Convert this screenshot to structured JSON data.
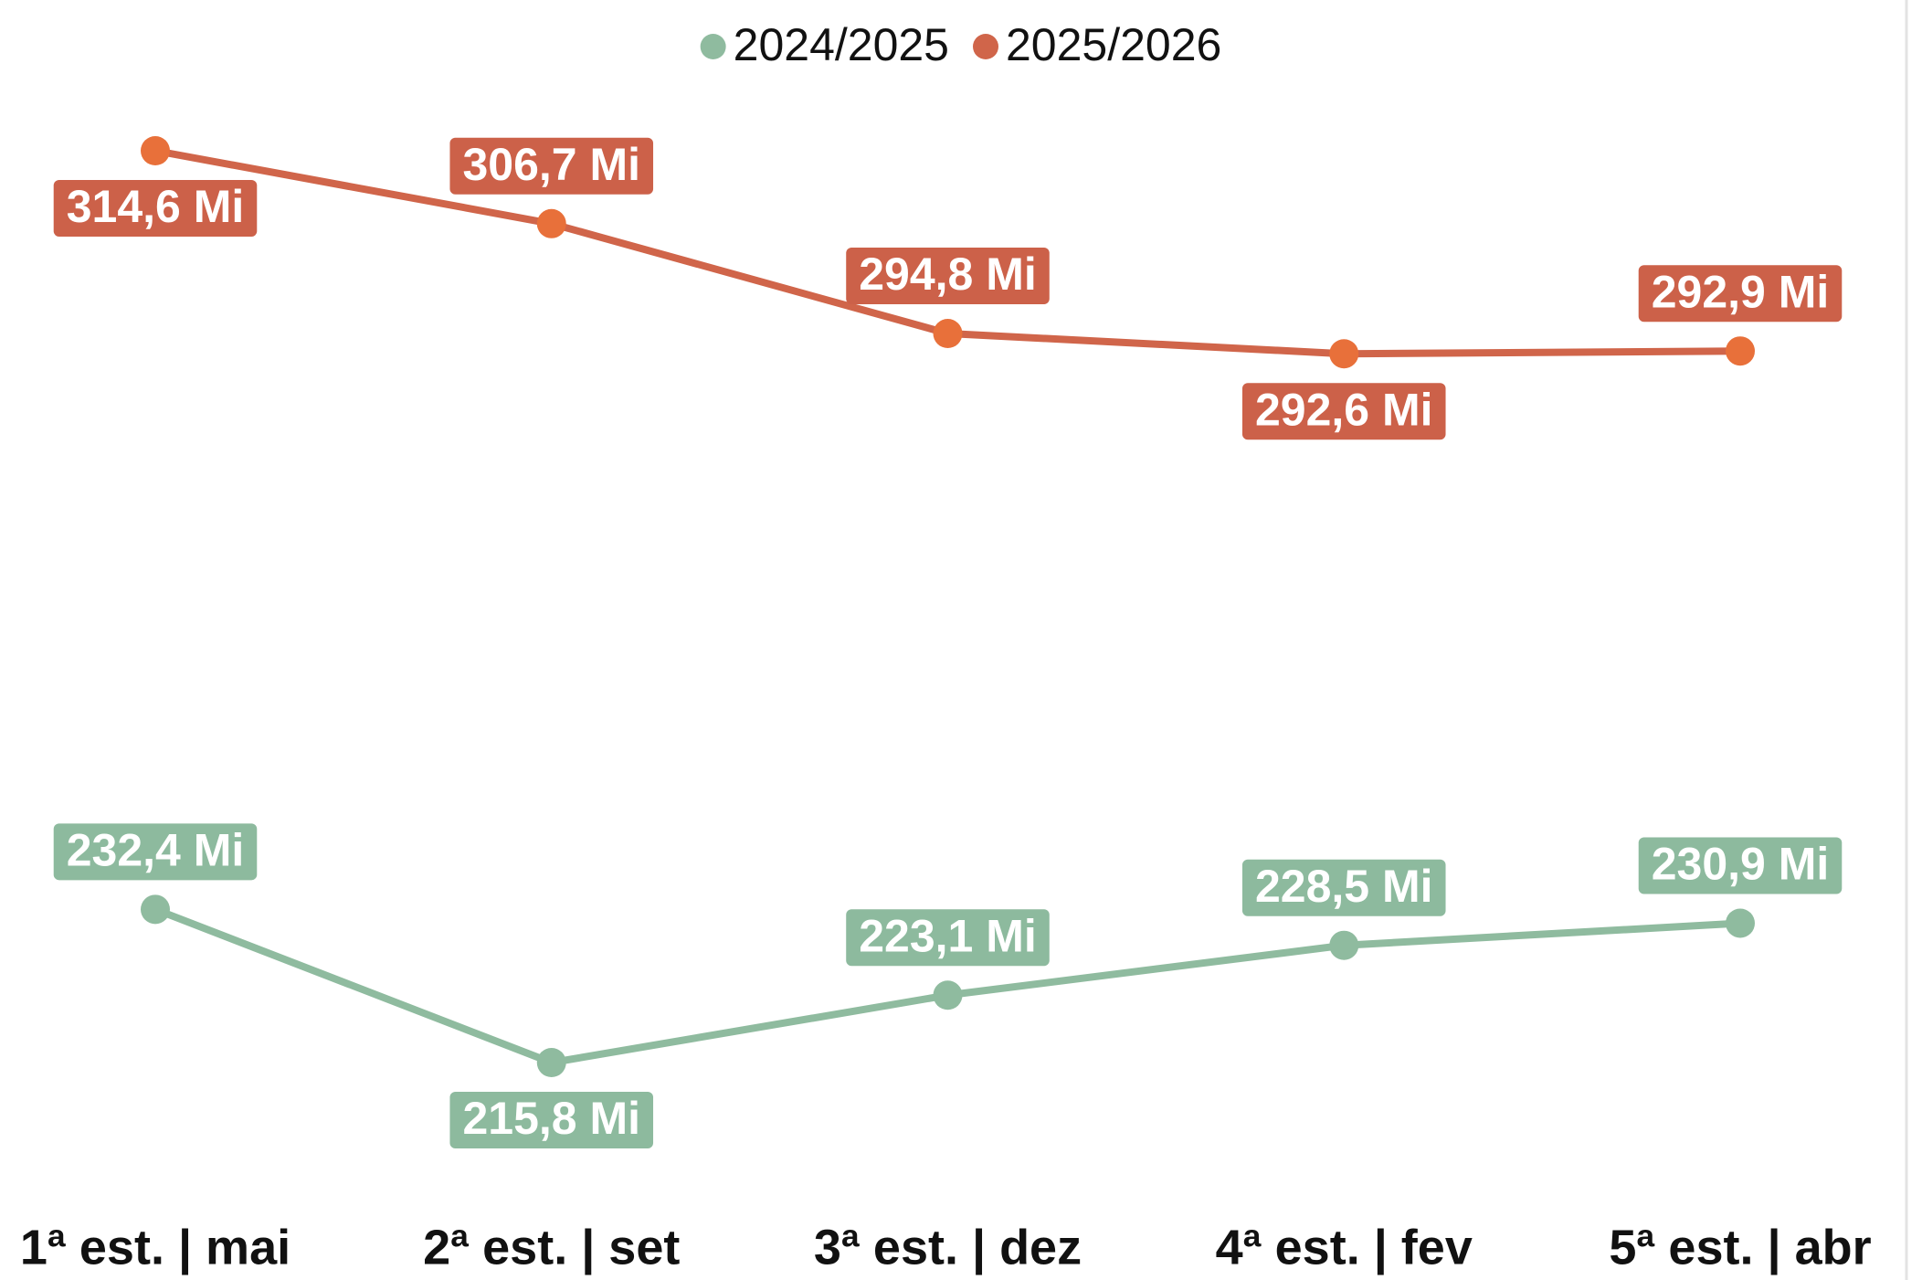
{
  "chart_data": {
    "type": "line",
    "categories": [
      "1ª est. | mai",
      "2ª est. | set",
      "3ª est. | dez",
      "4ª est. | fev",
      "5ª est. | abr"
    ],
    "series": [
      {
        "name": "2024/2025",
        "color": "#8fbb9f",
        "values": [
          232.4,
          215.8,
          223.1,
          228.5,
          230.9
        ],
        "value_labels": [
          "232,4 Mi",
          "215,8 Mi",
          "223,1 Mi",
          "228,5 Mi",
          "230,9 Mi"
        ]
      },
      {
        "name": "2025/2026",
        "color": "#d0654a",
        "values": [
          314.6,
          306.7,
          294.8,
          292.6,
          292.9
        ],
        "value_labels": [
          "314,6 Mi",
          "306,7 Mi",
          "294,8 Mi",
          "292,6 Mi",
          "292,9 Mi"
        ]
      }
    ],
    "legend": "top"
  }
}
